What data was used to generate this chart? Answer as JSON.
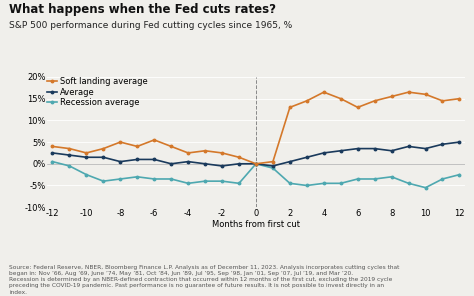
{
  "title": "What happens when the Fed cuts rates?",
  "subtitle": "S&P 500 performance during Fed cutting cycles since 1965, %",
  "xlabel": "Months from first cut",
  "source_text": "Source: Federal Reserve, NBER, Bloomberg Finance L.P. Analysis as of December 11, 2023. Analysis incorporates cutting cycles that began in: Nov ’66, Aug ’69, June ’74, May ’81, Oct ’84, Jun ’89, Jul ’95, Sep ’98, Jan ’01, Sep ’07, Jul ’19, and Mar ’20. Recession is determined by an NBER-defined contraction that occurred within 12 months of the first cut, excluding the 2019 cycle preceding the COVID-19 pandemic. Past performance is no guarantee of future results. It is not possible to invest directly in an index.",
  "x": [
    -12,
    -11,
    -10,
    -9,
    -8,
    -7,
    -6,
    -5,
    -4,
    -3,
    -2,
    -1,
    0,
    1,
    2,
    3,
    4,
    5,
    6,
    7,
    8,
    9,
    10,
    11,
    12
  ],
  "soft_landing": [
    4.0,
    3.5,
    2.5,
    3.5,
    5.0,
    4.0,
    5.5,
    4.0,
    2.5,
    3.0,
    2.5,
    1.5,
    0.0,
    0.5,
    13.0,
    14.5,
    16.5,
    15.0,
    13.0,
    14.5,
    15.5,
    16.5,
    16.0,
    14.5,
    15.0
  ],
  "average": [
    2.5,
    2.0,
    1.5,
    1.5,
    0.5,
    1.0,
    1.0,
    0.0,
    0.5,
    0.0,
    -0.5,
    0.0,
    0.0,
    -0.5,
    0.5,
    1.5,
    2.5,
    3.0,
    3.5,
    3.5,
    3.0,
    4.0,
    3.5,
    4.5,
    5.0
  ],
  "recession": [
    0.5,
    -0.5,
    -2.5,
    -4.0,
    -3.5,
    -3.0,
    -3.5,
    -3.5,
    -4.5,
    -4.0,
    -4.0,
    -4.5,
    0.0,
    -1.0,
    -4.5,
    -5.0,
    -4.5,
    -4.5,
    -3.5,
    -3.5,
    -3.0,
    -4.5,
    -5.5,
    -3.5,
    -2.5
  ],
  "soft_landing_color": "#d4782a",
  "average_color": "#1a3a5c",
  "recession_color": "#4ea8b0",
  "ylim": [
    -10,
    20
  ],
  "xlim": [
    -12,
    12
  ],
  "yticks": [
    -10,
    -5,
    0,
    5,
    10,
    15,
    20
  ],
  "xticks": [
    -12,
    -10,
    -8,
    -6,
    -4,
    -2,
    0,
    2,
    4,
    6,
    8,
    10,
    12
  ],
  "background_color": "#f0efeb",
  "title_fontsize": 8.5,
  "subtitle_fontsize": 6.5,
  "label_fontsize": 6,
  "tick_fontsize": 6,
  "source_fontsize": 4.2,
  "legend_fontsize": 6
}
